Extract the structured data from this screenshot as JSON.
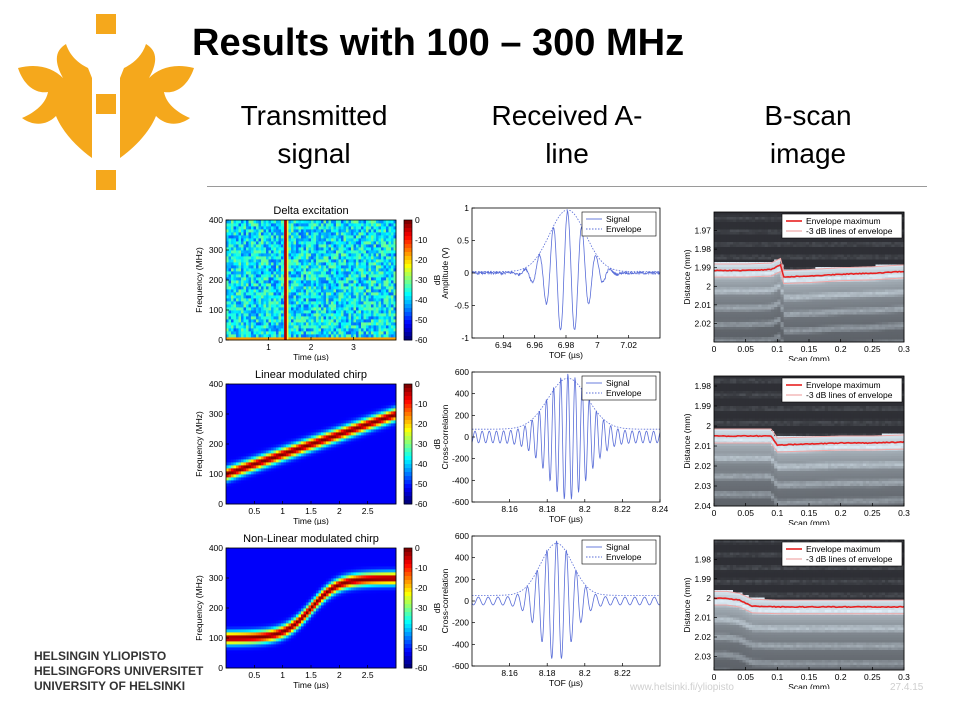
{
  "slide": {
    "title": "Results with 100 – 300 MHz",
    "columns": [
      "Transmitted\nsignal",
      "Received A-\nline",
      "B-scan\nimage"
    ],
    "university_lines": [
      "HELSINGIN YLIOPISTO",
      "HELSINGFORS UNIVERSITET",
      "UNIVERSITY OF HELSINKI"
    ],
    "footer_url": "www.helsinki.fi/yliopisto",
    "footer_page": "27.4.15"
  },
  "colors": {
    "logo": "#F5A81C",
    "signal": "#5a6ed8",
    "envelope": "#5a6ed8",
    "env_max": "#e82020",
    "env_3db": "#f0a8a8",
    "rule": "#9a9a9a"
  },
  "chart_data": [
    {
      "type": "heatmap",
      "id": "spec1",
      "title": "Delta excitation",
      "xlabel": "Time (µs)",
      "ylabel": "Frequency (MHz)",
      "xlim": [
        0,
        4
      ],
      "ylim": [
        0,
        400
      ],
      "xticks": [
        "1",
        "2",
        "3"
      ],
      "xtick_values": [
        1,
        2,
        3
      ],
      "yticks": [
        "0",
        "100",
        "200",
        "300",
        "400"
      ],
      "colorbar": {
        "label": "dB",
        "ticks": [
          "0",
          "-10",
          "-20",
          "-30",
          "-40",
          "-50",
          "-60"
        ],
        "range": [
          -60,
          0
        ]
      },
      "signal": {
        "kind": "delta",
        "time_us": 1.4
      }
    },
    {
      "type": "heatmap",
      "id": "spec2",
      "title": "Linear modulated chirp",
      "xlabel": "Time (µs)",
      "ylabel": "Frequency (MHz)",
      "xlim": [
        0,
        3
      ],
      "ylim": [
        0,
        400
      ],
      "xticks": [
        "0.5",
        "1",
        "1.5",
        "2",
        "2.5"
      ],
      "xtick_values": [
        0.5,
        1,
        1.5,
        2,
        2.5
      ],
      "yticks": [
        "0",
        "100",
        "200",
        "300",
        "400"
      ],
      "colorbar": {
        "label": "dB",
        "ticks": [
          "0",
          "-10",
          "-20",
          "-30",
          "-40",
          "-50",
          "-60"
        ],
        "range": [
          -60,
          0
        ]
      },
      "signal": {
        "kind": "linear",
        "f_start_mhz": 100,
        "f_end_mhz": 300
      }
    },
    {
      "type": "heatmap",
      "id": "spec3",
      "title": "Non-Linear modulated chirp",
      "xlabel": "Time (µs)",
      "ylabel": "Frequency (MHz)",
      "xlim": [
        0,
        3
      ],
      "ylim": [
        0,
        400
      ],
      "xticks": [
        "0.5",
        "1",
        "1.5",
        "2",
        "2.5"
      ],
      "xtick_values": [
        0.5,
        1,
        1.5,
        2,
        2.5
      ],
      "yticks": [
        "0",
        "100",
        "200",
        "300",
        "400"
      ],
      "colorbar": {
        "label": "dB",
        "ticks": [
          "0",
          "-10",
          "-20",
          "-30",
          "-40",
          "-50",
          "-60"
        ],
        "range": [
          -60,
          0
        ]
      },
      "signal": {
        "kind": "nonlinear",
        "f_start_mhz": 100,
        "f_end_mhz": 300,
        "t_mid_us": 1.5
      }
    },
    {
      "type": "line",
      "id": "aline1",
      "xlabel": "TOF (µs)",
      "ylabel": "Amplitude (V)",
      "xlim": [
        6.92,
        7.04
      ],
      "ylim": [
        -1,
        1
      ],
      "xticks": [
        "6.94",
        "6.96",
        "6.98",
        "7",
        "7.02"
      ],
      "xtick_values": [
        6.94,
        6.96,
        6.98,
        7.0,
        7.02
      ],
      "yticks": [
        "1",
        "0.5",
        "0",
        "-0.5",
        "-1"
      ],
      "ytick_values": [
        1,
        0.5,
        0,
        -0.5,
        -1
      ],
      "legend": [
        "Signal",
        "Envelope"
      ],
      "pulse": {
        "center": 6.981,
        "sigma": 0.0115,
        "period": 0.0091,
        "amp": 0.95,
        "baseline": 0.0
      }
    },
    {
      "type": "line",
      "id": "aline2",
      "xlabel": "TOF (µs)",
      "ylabel": "Cross-correlation",
      "xlim": [
        8.14,
        8.24
      ],
      "ylim": [
        -600,
        600
      ],
      "xticks": [
        "8.16",
        "8.18",
        "8.2",
        "8.22",
        "8.24"
      ],
      "xtick_values": [
        8.16,
        8.18,
        8.2,
        8.22,
        8.24
      ],
      "yticks": [
        "600",
        "400",
        "200",
        "0",
        "-200",
        "-400",
        "-600"
      ],
      "ytick_values": [
        600,
        400,
        200,
        0,
        -200,
        -400,
        -600
      ],
      "legend": [
        "Signal",
        "Envelope"
      ],
      "pulse": {
        "center": 8.191,
        "sigma": 0.0105,
        "period": 0.0038,
        "amp": 530,
        "baseline": 60
      }
    },
    {
      "type": "line",
      "id": "aline3",
      "xlabel": "TOF (µs)",
      "ylabel": "Cross-correlation",
      "xlim": [
        8.14,
        8.24
      ],
      "ylim": [
        -600,
        600
      ],
      "xticks": [
        "8.16",
        "8.18",
        "8.2",
        "8.22"
      ],
      "xtick_values": [
        8.16,
        8.18,
        8.2,
        8.22
      ],
      "yticks": [
        "600",
        "400",
        "200",
        "0",
        "-200",
        "-400",
        "-600"
      ],
      "ytick_values": [
        600,
        400,
        200,
        0,
        -200,
        -400,
        -600
      ],
      "legend": [
        "Signal",
        "Envelope"
      ],
      "pulse": {
        "center": 8.185,
        "sigma": 0.0085,
        "period": 0.0052,
        "amp": 520,
        "baseline": 40
      }
    },
    {
      "type": "heatmap",
      "id": "bscan1",
      "xlabel": "Scan (mm)",
      "ylabel": "Distance (mm)",
      "xlim": [
        0,
        0.3
      ],
      "ylim": [
        1.96,
        2.03
      ],
      "xticks": [
        "0",
        "0.05",
        "0.1",
        "0.15",
        "0.2",
        "0.25",
        "0.3"
      ],
      "xtick_values": [
        0,
        0.05,
        0.1,
        0.15,
        0.2,
        0.25,
        0.3
      ],
      "yticks": [
        "1.97",
        "1.98",
        "1.99",
        "2",
        "2.01",
        "2.02"
      ],
      "ytick_values": [
        1.97,
        1.98,
        1.99,
        2.0,
        2.01,
        2.02
      ],
      "legend": [
        "Envelope maximum",
        "-3 dB lines of envelope"
      ],
      "envelope_max": {
        "x": [
          0,
          0.05,
          0.09,
          0.105,
          0.11,
          0.15,
          0.2,
          0.25,
          0.3
        ],
        "y": [
          1.9915,
          1.9915,
          1.991,
          1.9885,
          1.995,
          1.9945,
          1.9935,
          1.993,
          1.992
        ]
      },
      "band_offset_mm": 0.0035
    },
    {
      "type": "heatmap",
      "id": "bscan2",
      "xlabel": "Scan (mm)",
      "ylabel": "Distance (mm)",
      "xlim": [
        0,
        0.3
      ],
      "ylim": [
        1.975,
        2.04
      ],
      "xticks": [
        "0",
        "0.05",
        "0.1",
        "0.15",
        "0.2",
        "0.25",
        "0.3"
      ],
      "xtick_values": [
        0,
        0.05,
        0.1,
        0.15,
        0.2,
        0.25,
        0.3
      ],
      "yticks": [
        "1.98",
        "1.99",
        "2",
        "2.01",
        "2.02",
        "2.03",
        "2.04"
      ],
      "ytick_values": [
        1.98,
        1.99,
        2.0,
        2.01,
        2.02,
        2.03,
        2.04
      ],
      "legend": [
        "Envelope maximum",
        "-3 dB lines of envelope"
      ],
      "envelope_max": {
        "x": [
          0,
          0.05,
          0.09,
          0.1,
          0.15,
          0.2,
          0.25,
          0.3
        ],
        "y": [
          2.005,
          2.005,
          2.005,
          2.0095,
          2.009,
          2.0085,
          2.0085,
          2.008
        ]
      },
      "band_offset_mm": 0.0035
    },
    {
      "type": "heatmap",
      "id": "bscan3",
      "xlabel": "Scan (mm)",
      "ylabel": "Distance (mm)",
      "xlim": [
        0,
        0.3
      ],
      "ylim": [
        1.97,
        2.037
      ],
      "xticks": [
        "0",
        "0.05",
        "0.1",
        "0.15",
        "0.2",
        "0.25",
        "0.3"
      ],
      "xtick_values": [
        0,
        0.05,
        0.1,
        0.15,
        0.2,
        0.25,
        0.3
      ],
      "yticks": [
        "1.98",
        "1.99",
        "2",
        "2.01",
        "2.02",
        "2.03"
      ],
      "ytick_values": [
        1.98,
        1.99,
        2.0,
        2.01,
        2.02,
        2.03
      ],
      "legend": [
        "Envelope maximum",
        "-3 dB lines of envelope"
      ],
      "envelope_max": {
        "x": [
          0,
          0.02,
          0.04,
          0.06,
          0.1,
          0.15,
          0.2,
          0.25,
          0.3
        ],
        "y": [
          2.0,
          2.0,
          2.001,
          2.004,
          2.0045,
          2.0045,
          2.0045,
          2.0045,
          2.0045
        ]
      },
      "band_offset_mm": 0.0035
    }
  ]
}
